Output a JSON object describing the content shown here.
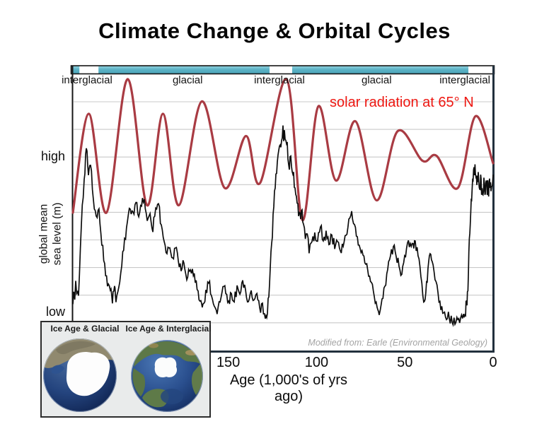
{
  "page": {
    "title": "Climate Change & Orbital Cycles"
  },
  "chart": {
    "solar_label": "solar radiation at 65° N",
    "high_label": "high",
    "low_label": "low",
    "y_axis_line1": "global mean",
    "y_axis_line2": "sea level (m)",
    "attribution": "Modified from: Earle (Environmental Geology)",
    "x_axis_title": "Age (1,000's of yrs ago)",
    "period_labels": [
      {
        "label": "interglacial",
        "age_center": 230
      },
      {
        "label": "glacial",
        "age_center": 173
      },
      {
        "label": "interglacial",
        "age_center": 121
      },
      {
        "label": "glacial",
        "age_center": 66
      },
      {
        "label": "interglacial",
        "age_center": 16
      }
    ],
    "colors": {
      "red_curve": "#a93b43",
      "red_text": "#ee1711",
      "teal_bar": "#5cb3c6",
      "gridline": "#c9c9c9",
      "frame_dark": "#22303d",
      "frame_black": "#161616",
      "black_curve": "#0d0d0d"
    }
  },
  "chart_data": {
    "type": "line",
    "title": "Climate Change & Orbital Cycles",
    "x_axis": {
      "label": "Age (1,000's of yrs ago)",
      "ticks": [
        150,
        100,
        50,
        0
      ],
      "range_kyr": [
        238,
        0
      ],
      "grid": false
    },
    "y_axis": {
      "label": "global mean sea level (m)",
      "scale": "relative",
      "low_label": "low",
      "high_label": "high",
      "grid": "horizontal"
    },
    "glacial_interglacial_bar": [
      {
        "period": "glacial",
        "from_kyr": 239,
        "to_kyr": 234.3
      },
      {
        "period": "interglacial",
        "from_kyr": 234.3,
        "to_kyr": 223.5
      },
      {
        "period": "glacial",
        "from_kyr": 223.5,
        "to_kyr": 126.6
      },
      {
        "period": "interglacial",
        "from_kyr": 126.6,
        "to_kyr": 113.8
      },
      {
        "period": "glacial",
        "from_kyr": 113.8,
        "to_kyr": 14
      },
      {
        "period": "interglacial",
        "from_kyr": 14,
        "to_kyr": 0
      }
    ],
    "series": [
      {
        "name": "solar radiation at 65° N",
        "color": "#a93b43",
        "style": "smooth",
        "points": [
          [
            238,
            0.46
          ],
          [
            229,
            0.86
          ],
          [
            219,
            0.46
          ],
          [
            207,
            1.0
          ],
          [
            196,
            0.49
          ],
          [
            187,
            0.86
          ],
          [
            178,
            0.49
          ],
          [
            165,
            0.91
          ],
          [
            152,
            0.56
          ],
          [
            140,
            0.77
          ],
          [
            132,
            0.58
          ],
          [
            117,
            1.0
          ],
          [
            108,
            0.43
          ],
          [
            99,
            0.89
          ],
          [
            89,
            0.59
          ],
          [
            78,
            0.83
          ],
          [
            66,
            0.51
          ],
          [
            54,
            0.79
          ],
          [
            40,
            0.67
          ],
          [
            32,
            0.69
          ],
          [
            20,
            0.56
          ],
          [
            10,
            0.85
          ],
          [
            0,
            0.66
          ]
        ]
      },
      {
        "name": "global mean sea level",
        "color": "#0d0d0d",
        "style": "noisy",
        "points": [
          [
            238,
            0.09
          ],
          [
            236.4,
            0.18
          ],
          [
            234.8,
            0.12
          ],
          [
            233.2,
            0.41
          ],
          [
            231.6,
            0.59
          ],
          [
            230.4,
            0.72
          ],
          [
            229.2,
            0.61
          ],
          [
            228,
            0.66
          ],
          [
            226.4,
            0.51
          ],
          [
            224.8,
            0.44
          ],
          [
            223.2,
            0.48
          ],
          [
            221.6,
            0.33
          ],
          [
            220,
            0.26
          ],
          [
            218.4,
            0.16
          ],
          [
            216.8,
            0.15
          ],
          [
            215.6,
            0.1
          ],
          [
            214.4,
            0.16
          ],
          [
            213.6,
            0.09
          ],
          [
            212,
            0.15
          ],
          [
            210.3,
            0.25
          ],
          [
            208.7,
            0.35
          ],
          [
            207.1,
            0.42
          ],
          [
            205.5,
            0.48
          ],
          [
            203.9,
            0.46
          ],
          [
            202.3,
            0.5
          ],
          [
            200.7,
            0.44
          ],
          [
            199.1,
            0.49
          ],
          [
            197.5,
            0.51
          ],
          [
            195.9,
            0.42
          ],
          [
            194.3,
            0.46
          ],
          [
            192.7,
            0.39
          ],
          [
            191.1,
            0.48
          ],
          [
            189.5,
            0.49
          ],
          [
            187.9,
            0.41
          ],
          [
            186.3,
            0.34
          ],
          [
            184.7,
            0.29
          ],
          [
            183.1,
            0.32
          ],
          [
            181.5,
            0.28
          ],
          [
            179.9,
            0.32
          ],
          [
            178.3,
            0.27
          ],
          [
            176.7,
            0.23
          ],
          [
            175.1,
            0.26
          ],
          [
            173.5,
            0.19
          ],
          [
            171.9,
            0.22
          ],
          [
            170.3,
            0.24
          ],
          [
            168.7,
            0.18
          ],
          [
            167.1,
            0.14
          ],
          [
            165.5,
            0.11
          ],
          [
            164.3,
            0.09
          ],
          [
            162.7,
            0.14
          ],
          [
            161.1,
            0.18
          ],
          [
            159.5,
            0.13
          ],
          [
            157.9,
            0.08
          ],
          [
            156.3,
            0.05
          ],
          [
            154.6,
            0.1
          ],
          [
            153,
            0.16
          ],
          [
            151.4,
            0.14
          ],
          [
            149.8,
            0.1
          ],
          [
            148.2,
            0.13
          ],
          [
            146.6,
            0.1
          ],
          [
            145,
            0.16
          ],
          [
            143.4,
            0.13
          ],
          [
            141.8,
            0.19
          ],
          [
            140.2,
            0.14
          ],
          [
            138.6,
            0.1
          ],
          [
            137,
            0.14
          ],
          [
            135.4,
            0.1
          ],
          [
            133.8,
            0.13
          ],
          [
            132.2,
            0.07
          ],
          [
            130.6,
            0.09
          ],
          [
            129,
            0.04
          ],
          [
            127.8,
            0.06
          ],
          [
            126.6,
            0.18
          ],
          [
            125.4,
            0.33
          ],
          [
            124.2,
            0.49
          ],
          [
            123,
            0.61
          ],
          [
            121.8,
            0.69
          ],
          [
            120.6,
            0.73
          ],
          [
            119.4,
            0.77
          ],
          [
            118.2,
            0.79
          ],
          [
            117,
            0.73
          ],
          [
            115.8,
            0.66
          ],
          [
            114.6,
            0.69
          ],
          [
            113.4,
            0.61
          ],
          [
            112.2,
            0.56
          ],
          [
            111,
            0.5
          ],
          [
            109.8,
            0.46
          ],
          [
            108.6,
            0.47
          ],
          [
            107.4,
            0.41
          ],
          [
            105.8,
            0.37
          ],
          [
            104.2,
            0.3
          ],
          [
            102.6,
            0.34
          ],
          [
            101,
            0.38
          ],
          [
            99.4,
            0.34
          ],
          [
            97.8,
            0.41
          ],
          [
            96.2,
            0.35
          ],
          [
            94.6,
            0.38
          ],
          [
            93,
            0.33
          ],
          [
            91.3,
            0.37
          ],
          [
            89.7,
            0.32
          ],
          [
            88.1,
            0.35
          ],
          [
            86.5,
            0.31
          ],
          [
            84.9,
            0.33
          ],
          [
            83.3,
            0.37
          ],
          [
            81.7,
            0.43
          ],
          [
            80.1,
            0.46
          ],
          [
            78.5,
            0.41
          ],
          [
            76.9,
            0.36
          ],
          [
            75.3,
            0.32
          ],
          [
            73.7,
            0.29
          ],
          [
            72.1,
            0.25
          ],
          [
            70.5,
            0.21
          ],
          [
            68.9,
            0.17
          ],
          [
            67.3,
            0.12
          ],
          [
            65.7,
            0.07
          ],
          [
            64.5,
            0.05
          ],
          [
            62.9,
            0.11
          ],
          [
            61.3,
            0.17
          ],
          [
            59.7,
            0.23
          ],
          [
            58.1,
            0.28
          ],
          [
            56.5,
            0.32
          ],
          [
            54.9,
            0.29
          ],
          [
            53.3,
            0.25
          ],
          [
            51.7,
            0.21
          ],
          [
            50.1,
            0.29
          ],
          [
            48.5,
            0.33
          ],
          [
            46.9,
            0.34
          ],
          [
            45.3,
            0.33
          ],
          [
            44.1,
            0.34
          ],
          [
            42.5,
            0.29
          ],
          [
            40.9,
            0.21
          ],
          [
            39.3,
            0.1
          ],
          [
            38.1,
            0.14
          ],
          [
            36.9,
            0.23
          ],
          [
            35.7,
            0.3
          ],
          [
            34.5,
            0.26
          ],
          [
            32.9,
            0.19
          ],
          [
            31.2,
            0.14
          ],
          [
            29.6,
            0.07
          ],
          [
            28,
            0.05
          ],
          [
            26.4,
            0.03
          ],
          [
            24.8,
            0.04
          ],
          [
            23.2,
            0.02
          ],
          [
            21.6,
            0.01
          ],
          [
            20,
            0.02
          ],
          [
            18.4,
            0.04
          ],
          [
            16.8,
            0.05
          ],
          [
            15.6,
            0.05
          ],
          [
            14.8,
            0.09
          ],
          [
            14,
            0.21
          ],
          [
            13.2,
            0.38
          ],
          [
            12.4,
            0.51
          ],
          [
            11.6,
            0.6
          ],
          [
            10.8,
            0.64
          ],
          [
            10,
            0.61
          ],
          [
            9.2,
            0.58
          ],
          [
            8.4,
            0.62
          ],
          [
            7.6,
            0.55
          ],
          [
            6.8,
            0.59
          ],
          [
            6,
            0.54
          ],
          [
            5.2,
            0.6
          ],
          [
            4.4,
            0.53
          ],
          [
            3.6,
            0.58
          ],
          [
            2.8,
            0.54
          ],
          [
            2,
            0.59
          ],
          [
            1.2,
            0.55
          ],
          [
            0,
            0.62
          ]
        ]
      }
    ]
  },
  "inset": {
    "panels": [
      {
        "label": "Ice Age & Glacial"
      },
      {
        "label": "Ice Age & Interglacial"
      }
    ]
  }
}
